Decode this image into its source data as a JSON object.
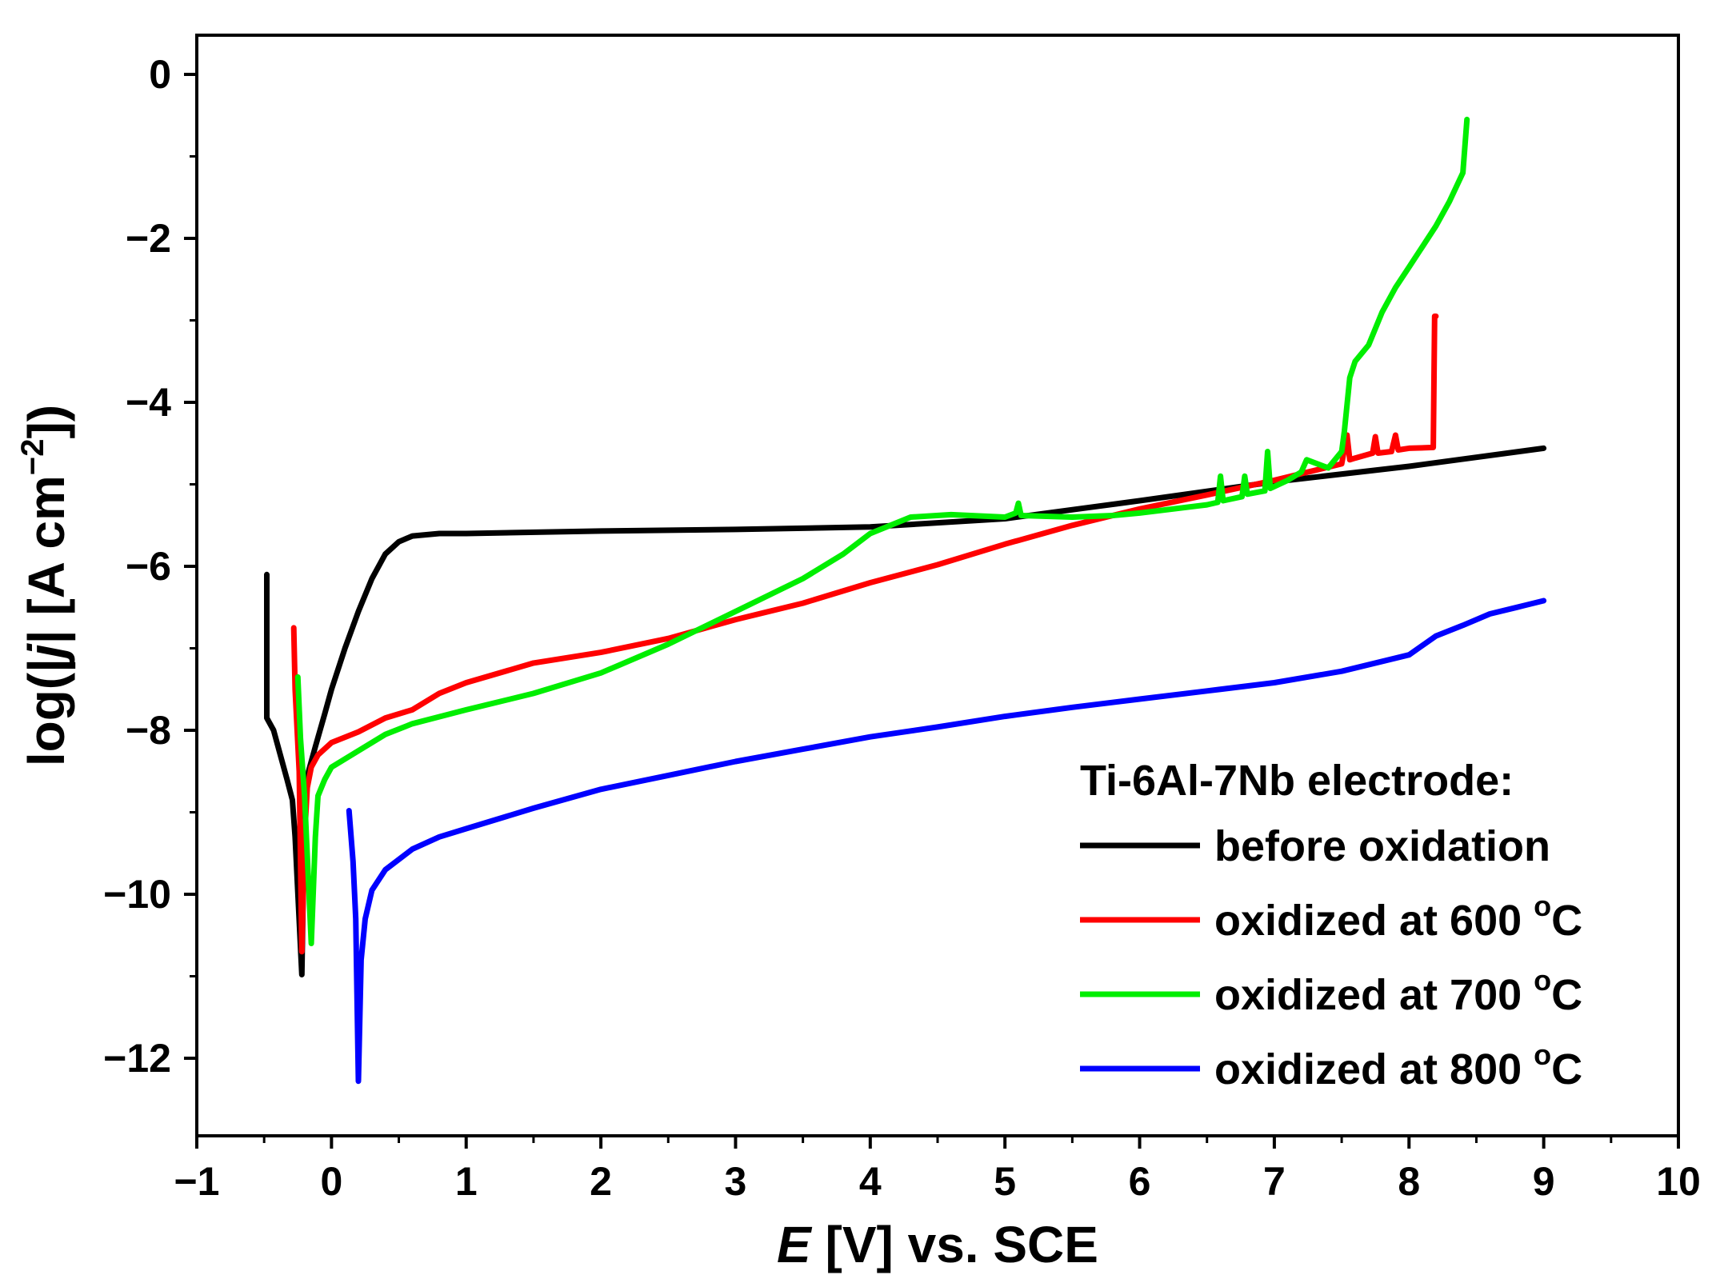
{
  "chart_data": {
    "type": "line",
    "title": "",
    "xlabel": {
      "italic": "E",
      "rest": " [V] vs. SCE"
    },
    "ylabel": {
      "prefix": "log(|",
      "italic": "j",
      "middle": "| [A cm",
      "sup": "−2",
      "suffix": "])"
    },
    "xlim": [
      -1,
      10
    ],
    "ylim": [
      -13,
      0.5
    ],
    "x_ticks": [
      -1,
      0,
      1,
      2,
      3,
      4,
      5,
      6,
      7,
      8,
      9,
      10
    ],
    "x_tick_labels": [
      "−1",
      "0",
      "1",
      "2",
      "3",
      "4",
      "5",
      "6",
      "7",
      "8",
      "9",
      "10"
    ],
    "y_ticks": [
      0,
      -2,
      -4,
      -6,
      -8,
      -10,
      -12
    ],
    "y_tick_labels": [
      "0",
      "−2",
      "−4",
      "−6",
      "−8",
      "−10",
      "−12"
    ],
    "grid": false,
    "legend": {
      "title": "Ti-6Al-7Nb electrode:",
      "position": "bottom-right",
      "unit_suffix": "C",
      "degree_symbol": "o"
    },
    "series": [
      {
        "name": "before oxidation",
        "color": "#000000",
        "points": [
          [
            -0.48,
            -6.1
          ],
          [
            -0.48,
            -7.85
          ],
          [
            -0.43,
            -8.0
          ],
          [
            -0.38,
            -8.3
          ],
          [
            -0.33,
            -8.6
          ],
          [
            -0.29,
            -8.85
          ],
          [
            -0.27,
            -9.3
          ],
          [
            -0.22,
            -10.98
          ],
          [
            -0.2,
            -9.0
          ],
          [
            -0.17,
            -8.5
          ],
          [
            -0.12,
            -8.2
          ],
          [
            -0.05,
            -7.8
          ],
          [
            0.0,
            -7.5
          ],
          [
            0.1,
            -7.0
          ],
          [
            0.2,
            -6.55
          ],
          [
            0.3,
            -6.15
          ],
          [
            0.4,
            -5.85
          ],
          [
            0.5,
            -5.7
          ],
          [
            0.6,
            -5.63
          ],
          [
            0.8,
            -5.6
          ],
          [
            1.0,
            -5.6
          ],
          [
            2.0,
            -5.57
          ],
          [
            3.0,
            -5.55
          ],
          [
            4.0,
            -5.52
          ],
          [
            5.0,
            -5.42
          ],
          [
            6.0,
            -5.2
          ],
          [
            7.0,
            -4.97
          ],
          [
            8.0,
            -4.78
          ],
          [
            9.0,
            -4.56
          ]
        ]
      },
      {
        "name": "oxidized at 600",
        "color": "#ff0000",
        "points": [
          [
            -0.28,
            -6.75
          ],
          [
            -0.27,
            -7.5
          ],
          [
            -0.24,
            -8.5
          ],
          [
            -0.22,
            -10.7
          ],
          [
            -0.2,
            -9.3
          ],
          [
            -0.18,
            -8.7
          ],
          [
            -0.15,
            -8.45
          ],
          [
            -0.1,
            -8.3
          ],
          [
            0.0,
            -8.15
          ],
          [
            0.2,
            -8.02
          ],
          [
            0.4,
            -7.85
          ],
          [
            0.6,
            -7.75
          ],
          [
            0.8,
            -7.55
          ],
          [
            1.0,
            -7.42
          ],
          [
            1.5,
            -7.18
          ],
          [
            2.0,
            -7.05
          ],
          [
            2.5,
            -6.88
          ],
          [
            3.0,
            -6.65
          ],
          [
            3.5,
            -6.45
          ],
          [
            4.0,
            -6.2
          ],
          [
            4.5,
            -5.98
          ],
          [
            5.0,
            -5.73
          ],
          [
            5.5,
            -5.5
          ],
          [
            6.0,
            -5.3
          ],
          [
            6.5,
            -5.13
          ],
          [
            7.0,
            -4.95
          ],
          [
            7.5,
            -4.75
          ],
          [
            7.54,
            -4.4
          ],
          [
            7.56,
            -4.7
          ],
          [
            7.6,
            -4.68
          ],
          [
            7.73,
            -4.62
          ],
          [
            7.75,
            -4.42
          ],
          [
            7.77,
            -4.62
          ],
          [
            7.87,
            -4.6
          ],
          [
            7.9,
            -4.4
          ],
          [
            7.92,
            -4.58
          ],
          [
            8.0,
            -4.56
          ],
          [
            8.18,
            -4.55
          ],
          [
            8.19,
            -2.95
          ],
          [
            8.2,
            -2.95
          ]
        ]
      },
      {
        "name": "oxidized at 700",
        "color": "#00ee00",
        "points": [
          [
            -0.25,
            -7.35
          ],
          [
            -0.23,
            -8.1
          ],
          [
            -0.2,
            -8.8
          ],
          [
            -0.15,
            -10.6
          ],
          [
            -0.12,
            -9.3
          ],
          [
            -0.1,
            -8.8
          ],
          [
            -0.05,
            -8.6
          ],
          [
            0.0,
            -8.45
          ],
          [
            0.2,
            -8.25
          ],
          [
            0.4,
            -8.05
          ],
          [
            0.6,
            -7.92
          ],
          [
            1.0,
            -7.75
          ],
          [
            1.5,
            -7.55
          ],
          [
            2.0,
            -7.3
          ],
          [
            2.5,
            -6.95
          ],
          [
            3.0,
            -6.55
          ],
          [
            3.5,
            -6.15
          ],
          [
            3.8,
            -5.85
          ],
          [
            4.0,
            -5.6
          ],
          [
            4.3,
            -5.4
          ],
          [
            4.6,
            -5.37
          ],
          [
            5.0,
            -5.4
          ],
          [
            5.08,
            -5.35
          ],
          [
            5.1,
            -5.23
          ],
          [
            5.12,
            -5.38
          ],
          [
            5.5,
            -5.4
          ],
          [
            5.8,
            -5.38
          ],
          [
            6.0,
            -5.35
          ],
          [
            6.5,
            -5.25
          ],
          [
            6.58,
            -5.22
          ],
          [
            6.6,
            -4.9
          ],
          [
            6.62,
            -5.2
          ],
          [
            6.76,
            -5.15
          ],
          [
            6.78,
            -4.9
          ],
          [
            6.8,
            -5.12
          ],
          [
            6.93,
            -5.08
          ],
          [
            6.95,
            -4.6
          ],
          [
            6.97,
            -5.05
          ],
          [
            7.1,
            -4.95
          ],
          [
            7.2,
            -4.85
          ],
          [
            7.24,
            -4.7
          ],
          [
            7.4,
            -4.8
          ],
          [
            7.5,
            -4.6
          ],
          [
            7.52,
            -4.35
          ],
          [
            7.56,
            -3.7
          ],
          [
            7.6,
            -3.5
          ],
          [
            7.7,
            -3.3
          ],
          [
            7.8,
            -2.9
          ],
          [
            7.9,
            -2.6
          ],
          [
            8.0,
            -2.35
          ],
          [
            8.1,
            -2.1
          ],
          [
            8.2,
            -1.85
          ],
          [
            8.3,
            -1.55
          ],
          [
            8.4,
            -1.2
          ],
          [
            8.43,
            -0.55
          ]
        ]
      },
      {
        "name": "oxidized at 800",
        "color": "#0000ff",
        "points": [
          [
            0.13,
            -8.98
          ],
          [
            0.16,
            -9.6
          ],
          [
            0.18,
            -10.3
          ],
          [
            0.2,
            -12.28
          ],
          [
            0.22,
            -10.8
          ],
          [
            0.25,
            -10.3
          ],
          [
            0.3,
            -9.95
          ],
          [
            0.4,
            -9.7
          ],
          [
            0.6,
            -9.45
          ],
          [
            0.8,
            -9.3
          ],
          [
            1.0,
            -9.2
          ],
          [
            1.5,
            -8.95
          ],
          [
            2.0,
            -8.72
          ],
          [
            2.5,
            -8.55
          ],
          [
            3.0,
            -8.38
          ],
          [
            3.5,
            -8.23
          ],
          [
            4.0,
            -8.08
          ],
          [
            4.5,
            -7.96
          ],
          [
            5.0,
            -7.83
          ],
          [
            5.5,
            -7.72
          ],
          [
            6.0,
            -7.62
          ],
          [
            6.5,
            -7.52
          ],
          [
            7.0,
            -7.42
          ],
          [
            7.5,
            -7.28
          ],
          [
            7.9,
            -7.12
          ],
          [
            8.0,
            -7.08
          ],
          [
            8.2,
            -6.85
          ],
          [
            8.4,
            -6.72
          ],
          [
            8.6,
            -6.58
          ],
          [
            8.8,
            -6.5
          ],
          [
            9.0,
            -6.42
          ]
        ]
      }
    ]
  }
}
